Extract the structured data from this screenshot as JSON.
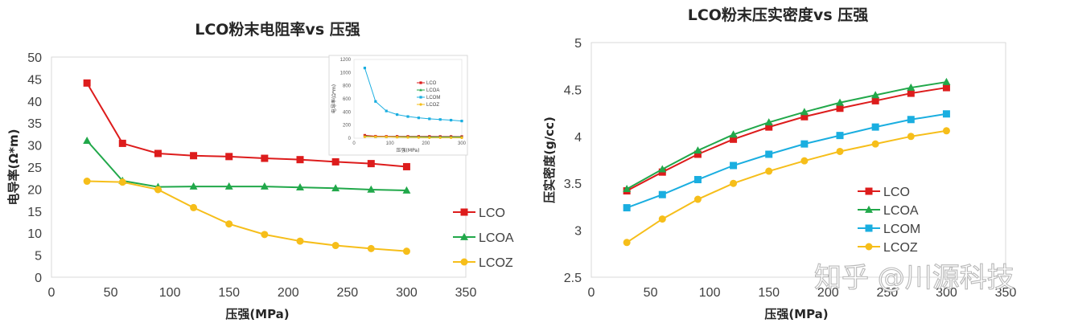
{
  "chart_data": [
    {
      "type": "line",
      "title": "LCO粉末电阻率vs 压强",
      "xlabel": "压强(MPa)",
      "ylabel": "电导率(Ω*m)",
      "xlim": [
        0,
        350
      ],
      "ylim": [
        0,
        50
      ],
      "xticks": [
        "0",
        "50",
        "100",
        "150",
        "200",
        "250",
        "300",
        "350"
      ],
      "yticks": [
        "0",
        "5",
        "10",
        "15",
        "20",
        "25",
        "30",
        "35",
        "40",
        "45",
        "50"
      ],
      "x": [
        30,
        60,
        90,
        120,
        150,
        180,
        210,
        240,
        270,
        300
      ],
      "legend_position": "right",
      "series": [
        {
          "name": "LCO",
          "color": "#dd1c1c",
          "marker": "square",
          "values": [
            44.1,
            30.4,
            28.1,
            27.6,
            27.4,
            27.0,
            26.7,
            26.2,
            25.8,
            25.1
          ]
        },
        {
          "name": "LCOA",
          "color": "#21a84a",
          "marker": "triangle",
          "values": [
            31.0,
            21.9,
            20.5,
            20.6,
            20.6,
            20.6,
            20.4,
            20.2,
            19.9,
            19.7
          ]
        },
        {
          "name": "LCOZ",
          "color": "#f6be1a",
          "marker": "circle",
          "values": [
            21.8,
            21.6,
            19.9,
            15.8,
            12.1,
            9.7,
            8.2,
            7.2,
            6.5,
            5.9
          ]
        }
      ],
      "inset": {
        "xlabel": "压强(MPa)",
        "ylabel": "电导率(Ω*m)",
        "xlim": [
          0,
          300
        ],
        "ylim": [
          0,
          1200
        ],
        "xticks": [
          "0",
          "100",
          "200",
          "300"
        ],
        "yticks": [
          "0",
          "200",
          "400",
          "600",
          "800",
          "1000",
          "1200"
        ],
        "x": [
          30,
          60,
          90,
          120,
          150,
          180,
          210,
          240,
          270,
          300
        ],
        "series": [
          {
            "name": "LCO",
            "color": "#dd1c1c",
            "marker": "square",
            "values": [
              44,
              30,
              28,
              28,
              27,
              27,
              27,
              26,
              26,
              25
            ]
          },
          {
            "name": "LCOA",
            "color": "#21a84a",
            "marker": "triangle",
            "values": [
              31,
              22,
              21,
              21,
              21,
              21,
              20,
              20,
              20,
              20
            ]
          },
          {
            "name": "LCOM",
            "color": "#1aaee0",
            "marker": "square",
            "values": [
              1070,
              560,
              415,
              360,
              330,
              310,
              295,
              285,
              275,
              262
            ]
          },
          {
            "name": "LCOZ",
            "color": "#f6be1a",
            "marker": "circle",
            "values": [
              22,
              22,
              20,
              16,
              12,
              10,
              8,
              7,
              7,
              6
            ]
          }
        ]
      }
    },
    {
      "type": "line",
      "title": "LCO粉末压实密度vs 压强",
      "xlabel": "压强(MPa)",
      "ylabel": "压实密度(g/cc)",
      "xlim": [
        0,
        350
      ],
      "ylim": [
        2.5,
        5
      ],
      "xticks": [
        "0",
        "50",
        "100",
        "150",
        "200",
        "250",
        "300",
        "350"
      ],
      "yticks": [
        "2.5",
        "3",
        "3.5",
        "4",
        "4.5",
        "5"
      ],
      "x": [
        30,
        60,
        90,
        120,
        150,
        180,
        210,
        240,
        270,
        300
      ],
      "legend_position": "center-right",
      "series": [
        {
          "name": "LCO",
          "color": "#dd1c1c",
          "marker": "square",
          "values": [
            3.42,
            3.62,
            3.81,
            3.97,
            4.1,
            4.21,
            4.3,
            4.38,
            4.46,
            4.52
          ]
        },
        {
          "name": "LCOA",
          "color": "#21a84a",
          "marker": "triangle",
          "values": [
            3.44,
            3.65,
            3.85,
            4.02,
            4.15,
            4.26,
            4.36,
            4.44,
            4.52,
            4.58
          ]
        },
        {
          "name": "LCOM",
          "color": "#1aaee0",
          "marker": "square",
          "values": [
            3.24,
            3.38,
            3.54,
            3.69,
            3.81,
            3.92,
            4.01,
            4.1,
            4.18,
            4.24
          ]
        },
        {
          "name": "LCOZ",
          "color": "#f6be1a",
          "marker": "circle",
          "values": [
            2.87,
            3.12,
            3.33,
            3.5,
            3.63,
            3.74,
            3.84,
            3.92,
            4.0,
            4.06
          ]
        }
      ]
    }
  ],
  "watermark": "知乎 @川源科技"
}
